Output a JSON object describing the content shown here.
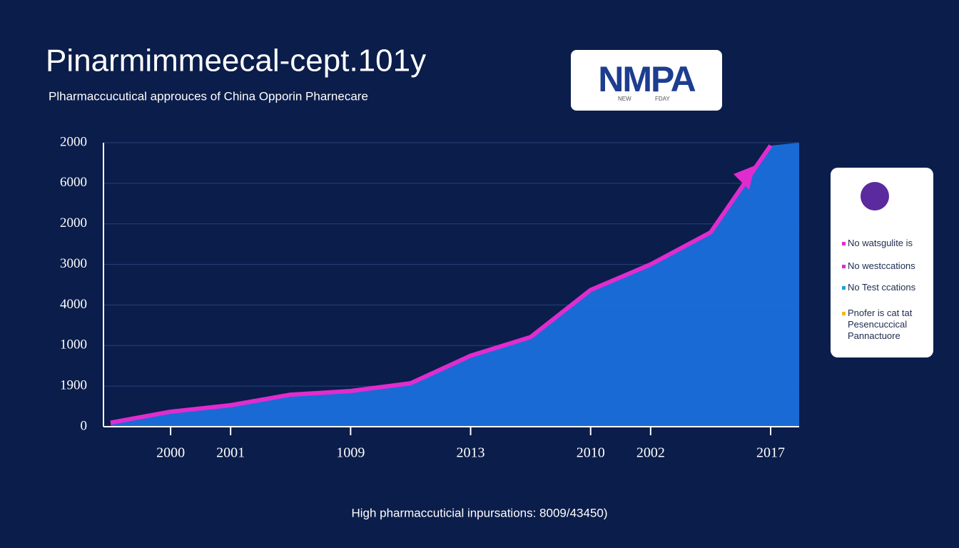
{
  "chart_data": {
    "type": "area",
    "title": "Pinarmimmeecal-cept.101y",
    "subtitle": "Plharmaccucutical approuces of China Opporin Pharnecare",
    "footer": "High pharmaccuticial inpursations: 8009/43450)",
    "categories": [
      null,
      "2000",
      "2001",
      null,
      "1009",
      null,
      "2013",
      null,
      "2010",
      "2002",
      null,
      "2017"
    ],
    "series": [
      {
        "color": "#e02ccf",
        "fill": "#1a6fdb",
        "values": [
          0.1,
          0.37,
          0.53,
          0.79,
          0.88,
          1.07,
          1.75,
          2.21,
          3.37,
          4.0,
          4.79,
          6.93
        ]
      }
    ],
    "ylim": [
      0,
      7
    ],
    "yticks": [
      0,
      {
        "value": 1,
        "label": "1900"
      },
      {
        "value": 2,
        "label": "1000"
      },
      {
        "value": 3,
        "label": "4000"
      },
      {
        "value": 4,
        "label": "3000"
      },
      {
        "value": 5,
        "label": "2000"
      },
      {
        "value": 6,
        "label": "6000"
      },
      {
        "value": 7,
        "label": "2000"
      }
    ],
    "grid": true
  },
  "logo": {
    "text": "NMPA",
    "small_left": "NEW",
    "small_right": "FDAY"
  },
  "legend_panel": [
    {
      "text": "No watsgulite is",
      "color": "#e02ccf"
    },
    {
      "text": "No westccations",
      "color": "#e02ccf"
    },
    {
      "text": "No Test ccations",
      "color": "#1aa3e0"
    },
    {
      "text": "Pnofer is cat tat Pesencuccical Pannactuore",
      "color": "#f2b820"
    }
  ]
}
